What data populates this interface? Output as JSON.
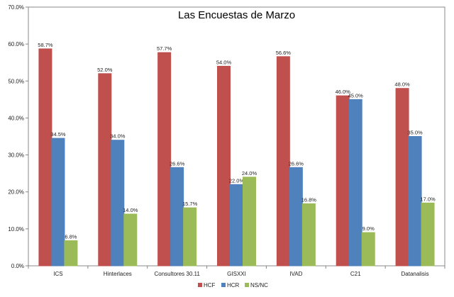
{
  "chart_data": {
    "type": "bar",
    "title": "Las Encuestas de Marzo",
    "xlabel": "",
    "ylabel": "",
    "categories": [
      "ICS",
      "Hinterlaces",
      "Consultores 30.11",
      "GISXXI",
      "IVAD",
      "C21",
      "Datanalisis"
    ],
    "series": [
      {
        "name": "HCF",
        "color": "#c0504d",
        "values": [
          58.7,
          52.0,
          57.7,
          54.0,
          56.6,
          46.0,
          48.0
        ]
      },
      {
        "name": "HCR",
        "color": "#4f81bd",
        "values": [
          34.5,
          34.0,
          26.6,
          22.0,
          26.6,
          45.0,
          35.0
        ]
      },
      {
        "name": "NS/NC",
        "color": "#9bbb59",
        "values": [
          6.8,
          14.0,
          15.7,
          24.0,
          16.8,
          9.0,
          17.0
        ]
      }
    ],
    "ylim": [
      0,
      70
    ],
    "yticks": [
      0,
      10,
      20,
      30,
      40,
      50,
      60,
      70
    ],
    "ytick_format": "percent_1dp",
    "grid": false,
    "legend_position": "bottom-center"
  }
}
